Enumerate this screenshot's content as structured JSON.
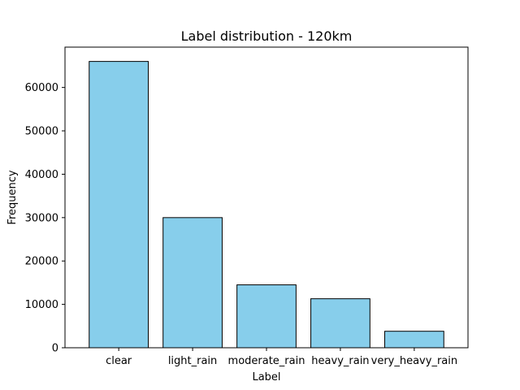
{
  "chart_data": {
    "type": "bar",
    "title": "Label distribution - 120km",
    "xlabel": "Label",
    "ylabel": "Frequency",
    "categories": [
      "clear",
      "light_rain",
      "moderate_rain",
      "heavy_rain",
      "very_heavy_rain"
    ],
    "values": [
      66000,
      30000,
      14500,
      11300,
      3800
    ],
    "ylim": [
      0,
      69300
    ],
    "yticks": [
      0,
      10000,
      20000,
      30000,
      40000,
      50000,
      60000
    ],
    "grid": false,
    "bar_color": "#87CEEB",
    "edge_color": "#000000"
  }
}
